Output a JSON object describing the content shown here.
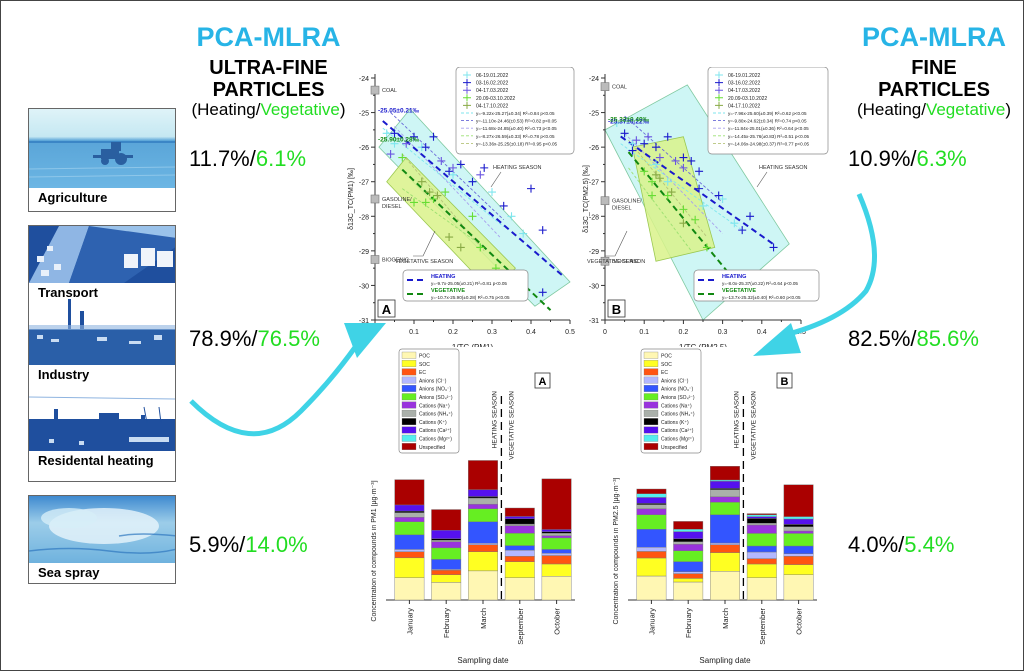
{
  "left_header": {
    "method": "PCA-MLRA",
    "particle_type_line1": "ULTRA-FINE",
    "particle_type_line2": "PARTICLES",
    "season_open": "(Heating/",
    "season_veg": "Vegetative",
    "season_close": ")"
  },
  "right_header": {
    "method": "PCA-MLRA",
    "particle_type_line1": "FINE",
    "particle_type_line2": "PARTICLES",
    "season_open": "(Heating/",
    "season_veg": "Vegetative",
    "season_close": ")"
  },
  "sources": [
    {
      "label": "Agriculture",
      "icon": "tractor-field-photo"
    },
    {
      "label": "Transport",
      "icon": "highway-traffic-photo"
    },
    {
      "label": "Industry",
      "icon": "factory-chimney-photo"
    },
    {
      "label": "Residental heating",
      "icon": "rooftops-chimneys-photo"
    },
    {
      "label": "Sea spray",
      "icon": "sea-waves-photo"
    }
  ],
  "contributions_ultrafine": [
    {
      "group": "agriculture",
      "heating": "11.7%",
      "sep": "/",
      "vegetative": "6.1%"
    },
    {
      "group": "transport-industry-residential",
      "heating": "78.9%",
      "sep": "/",
      "vegetative": "76.5%"
    },
    {
      "group": "sea-spray",
      "heating": "5.9%",
      "sep": "/",
      "vegetative": "14.0%"
    }
  ],
  "contributions_fine": [
    {
      "group": "agriculture",
      "heating": "10.9%",
      "sep": "/",
      "vegetative": "6.3%"
    },
    {
      "group": "transport-industry-residential",
      "heating": "82.5%",
      "sep": "/",
      "vegetative": "85.6%"
    },
    {
      "group": "sea-spray",
      "heating": "4.0%",
      "sep": "/",
      "vegetative": "5.4%"
    }
  ],
  "colors": {
    "accent_cyan": "#27b4e6",
    "arrow_cyan": "#3fd3e6",
    "vegetative_green": "#22dd22",
    "heating_blue": "#1a1acc",
    "vegetative_dark_green": "#118811"
  },
  "chart_data": [
    {
      "id": "A-scatter",
      "type": "scatter",
      "panel_label": "A",
      "xlabel": "1/TC (PM1)",
      "ylabel": "δ13C_TC(PM1) [‰]",
      "xlim": [
        0,
        0.5
      ],
      "ylim": [
        -31,
        -24
      ],
      "xticks": [
        "0",
        "0.1",
        "0.2",
        "0.3",
        "0.4",
        "0.5"
      ],
      "yticks": [
        "-24",
        "-25",
        "-26",
        "-27",
        "-28",
        "-29",
        "-30",
        "-31"
      ],
      "reference_markers": [
        {
          "label": "COAL",
          "y": -24.35
        },
        {
          "label": "GASOLINE/ DIESEL",
          "y": -27.5
        },
        {
          "label": "BIOGENIC",
          "y": -29.25
        }
      ],
      "region_labels": [
        "HEATING SEASON",
        "VEGETATIVE SEASON"
      ],
      "intercept_labels": [
        {
          "text": "-25.05±0.21‰",
          "series": "heating"
        },
        {
          "text": "-25.90±0.28‰",
          "series": "vegetative"
        }
      ],
      "legend_top": [
        {
          "name": "06-19.01.2022",
          "color": "#7fe6ee"
        },
        {
          "name": "03-16.02.2022",
          "color": "#1a1acc"
        },
        {
          "name": "04-17.03.2022",
          "color": "#6a55e0"
        },
        {
          "name": "20.09-03.10.2022",
          "color": "#66dd33"
        },
        {
          "name": "04-17.10.2022",
          "color": "#88aa44"
        }
      ],
      "fit_lines": [
        "y=-9.22x-25.27(±0.34) R²=0.84 p<0.05",
        "y=-11.10x-24.46(±0.53) R²=0.82 p<0.05",
        "y=-11.68x-24.85(±0.40) R²=0.73 p<0.05",
        "y=-8.27x-26.59(±0.33) R²=0.78 p<0.05",
        "y=-13.36x-25.25(±0.18) R²=0.95 p<0.05"
      ],
      "legend_bottom": [
        {
          "name": "HEATING",
          "eq": "y=-9.7x-25.05(±0.21) R²=0.81 p<0.05",
          "color": "#1a1acc"
        },
        {
          "name": "VEGETATIVE",
          "eq": "y=-10.7x-25.90(±0.28) R²=0.75 p<0.05",
          "color": "#118811"
        }
      ],
      "series": [
        {
          "name": "06-19.01.2022",
          "color": "#7fe6ee",
          "points": [
            [
              0.03,
              -25.6
            ],
            [
              0.05,
              -25.9
            ],
            [
              0.12,
              -26.0
            ],
            [
              0.2,
              -26.8
            ],
            [
              0.25,
              -27.0
            ],
            [
              0.3,
              -27.3
            ],
            [
              0.35,
              -28.0
            ],
            [
              0.38,
              -28.5
            ]
          ]
        },
        {
          "name": "03-16.02.2022",
          "color": "#1a1acc",
          "points": [
            [
              0.05,
              -25.6
            ],
            [
              0.1,
              -25.7
            ],
            [
              0.13,
              -26.0
            ],
            [
              0.15,
              -25.7
            ],
            [
              0.19,
              -26.7
            ],
            [
              0.22,
              -26.5
            ],
            [
              0.25,
              -27.0
            ],
            [
              0.28,
              -26.6
            ],
            [
              0.33,
              -27.7
            ],
            [
              0.4,
              -27.2
            ],
            [
              0.43,
              -28.4
            ],
            [
              0.43,
              -30.2
            ]
          ]
        },
        {
          "name": "04-17.03.2022",
          "color": "#6a55e0",
          "points": [
            [
              0.04,
              -26.2
            ],
            [
              0.08,
              -25.9
            ],
            [
              0.17,
              -26.4
            ],
            [
              0.2,
              -26.6
            ],
            [
              0.27,
              -26.8
            ]
          ]
        },
        {
          "name": "20.09-03.10.2022",
          "color": "#66dd33",
          "points": [
            [
              0.07,
              -26.3
            ],
            [
              0.1,
              -27.6
            ],
            [
              0.13,
              -27.6
            ],
            [
              0.15,
              -27.5
            ],
            [
              0.18,
              -27.3
            ],
            [
              0.25,
              -28.0
            ],
            [
              0.27,
              -28.9
            ],
            [
              0.31,
              -29.5
            ]
          ]
        },
        {
          "name": "04-17.10.2022",
          "color": "#88aa44",
          "points": [
            [
              0.12,
              -27.0
            ],
            [
              0.14,
              -27.3
            ],
            [
              0.16,
              -27.4
            ],
            [
              0.19,
              -28.6
            ],
            [
              0.22,
              -28.9
            ]
          ]
        }
      ],
      "regression": [
        {
          "name": "HEATING",
          "slope": -9.7,
          "intercept": -25.05,
          "x_range": [
            0.02,
            0.48
          ],
          "color": "#1a1acc"
        },
        {
          "name": "VEGETATIVE",
          "slope": -10.7,
          "intercept": -25.9,
          "x_range": [
            0.07,
            0.45
          ],
          "color": "#118811"
        }
      ]
    },
    {
      "id": "B-scatter",
      "type": "scatter",
      "panel_label": "B",
      "xlabel": "1/TC (PM2.5)",
      "ylabel": "δ13C_TC(PM2.5) [‰]",
      "xlim": [
        0,
        0.5
      ],
      "ylim": [
        -31,
        -24
      ],
      "xticks": [
        "0",
        "0.1",
        "0.2",
        "0.3",
        "0.4",
        "0.5"
      ],
      "yticks": [
        "-24",
        "-25",
        "-26",
        "-27",
        "-28",
        "-29",
        "-30",
        "-31"
      ],
      "reference_markers": [
        {
          "label": "COAL",
          "y": -24.25
        },
        {
          "label": "GASOLINE/ DIESEL",
          "y": -27.55
        },
        {
          "label": "BIOGENIC",
          "y": -29.3
        }
      ],
      "region_labels": [
        "HEATING SEASON",
        "VEGETATIVE SEASON"
      ],
      "intercept_labels": [
        {
          "text": "-25.37±0.22‰",
          "series": "heating"
        },
        {
          "text": "-25.32±0.40‰",
          "series": "vegetative"
        }
      ],
      "legend_top": [
        {
          "name": "06-19.01.2022",
          "color": "#7fe6ee"
        },
        {
          "name": "03-16.02.2022",
          "color": "#1a1acc"
        },
        {
          "name": "04-17.03.2022",
          "color": "#6a55e0"
        },
        {
          "name": "20.09-03.10.2022",
          "color": "#66dd33"
        },
        {
          "name": "04-17.10.2022",
          "color": "#88aa44"
        }
      ],
      "fit_lines": [
        "y=-7.96x-25.60(±0.39) R²=0.62 p<0.05",
        "y=-9.80x-24.62(±0.34) R²=0.74 p<0.05",
        "y=-11.84x-25.01(±0.36) R²=0.64 p<0.05",
        "y=-14.45x-25.76(±0.83) R²=0.51 p<0.05",
        "y=-14.06x-24.98(±0.37) R²=0.77 p<0.05"
      ],
      "legend_bottom": [
        {
          "name": "HEATING",
          "eq": "y=-8.0x-25.37(±0.22) R²=0.64 p<0.05",
          "color": "#1a1acc"
        },
        {
          "name": "VEGETATIVE",
          "eq": "y=-13.7x-25.32(±0.40) R²=0.60 p<0.05",
          "color": "#118811"
        }
      ],
      "series": [
        {
          "name": "06-19.01.2022",
          "color": "#7fe6ee",
          "points": [
            [
              0.03,
              -25.3
            ],
            [
              0.07,
              -25.9
            ],
            [
              0.13,
              -26.5
            ],
            [
              0.16,
              -27.0
            ],
            [
              0.25,
              -27.7
            ],
            [
              0.3,
              -27.5
            ],
            [
              0.33,
              -28.2
            ]
          ]
        },
        {
          "name": "03-16.02.2022",
          "color": "#1a1acc",
          "points": [
            [
              0.05,
              -25.6
            ],
            [
              0.07,
              -26.1
            ],
            [
              0.1,
              -25.9
            ],
            [
              0.13,
              -26.0
            ],
            [
              0.16,
              -25.7
            ],
            [
              0.2,
              -26.3
            ],
            [
              0.22,
              -26.4
            ],
            [
              0.24,
              -26.7
            ],
            [
              0.24,
              -27.2
            ],
            [
              0.29,
              -25.4
            ],
            [
              0.29,
              -27.4
            ],
            [
              0.37,
              -28.0
            ],
            [
              0.35,
              -28.4
            ],
            [
              0.43,
              -28.9
            ]
          ]
        },
        {
          "name": "04-17.03.2022",
          "color": "#6a55e0",
          "points": [
            [
              0.08,
              -25.8
            ],
            [
              0.11,
              -25.7
            ],
            [
              0.14,
              -26.3
            ],
            [
              0.18,
              -26.4
            ],
            [
              0.2,
              -26.6
            ]
          ]
        },
        {
          "name": "20.09-03.10.2022",
          "color": "#66dd33",
          "points": [
            [
              0.1,
              -26.7
            ],
            [
              0.12,
              -27.0
            ],
            [
              0.12,
              -27.4
            ],
            [
              0.16,
              -27.4
            ],
            [
              0.2,
              -27.8
            ],
            [
              0.23,
              -28.1
            ],
            [
              0.26,
              -28.9
            ]
          ]
        },
        {
          "name": "04-17.10.2022",
          "color": "#88aa44",
          "points": [
            [
              0.13,
              -26.8
            ],
            [
              0.14,
              -26.9
            ],
            [
              0.17,
              -27.3
            ],
            [
              0.2,
              -28.2
            ]
          ]
        }
      ],
      "regression": [
        {
          "name": "HEATING",
          "slope": -8.0,
          "intercept": -25.37,
          "x_range": [
            0.04,
            0.43
          ],
          "color": "#1a1acc"
        },
        {
          "name": "VEGETATIVE",
          "slope": -13.7,
          "intercept": -25.32,
          "x_range": [
            0.06,
            0.35
          ],
          "color": "#118811"
        }
      ]
    },
    {
      "id": "A-stacked-bar",
      "type": "bar",
      "stacked": true,
      "panel_label": "A",
      "xlabel": "Sampling date",
      "ylabel": "Concentration of compounds in PM1 [µg·m⁻³]",
      "categories": [
        "January",
        "February",
        "March",
        "September",
        "October"
      ],
      "season_divider_labels": [
        "HEATING SEASON",
        "VEGETATIVE SEASON"
      ],
      "season_divider_after_index": 2,
      "series": [
        {
          "name": "POC",
          "color": "#fff7b3",
          "values": [
            2.9,
            2.3,
            3.8,
            2.9,
            3.1
          ]
        },
        {
          "name": "SOC",
          "color": "#ffff22",
          "values": [
            2.6,
            1.0,
            2.5,
            2.1,
            1.6
          ]
        },
        {
          "name": "EC",
          "color": "#ff5511",
          "values": [
            0.8,
            0.6,
            0.9,
            0.7,
            1.1
          ]
        },
        {
          "name": "Anions (Cl⁻)",
          "color": "#b3b8ff",
          "values": [
            0.3,
            0.1,
            0.2,
            0.8,
            0.3
          ]
        },
        {
          "name": "Anions (NO₃⁻)",
          "color": "#3355ff",
          "values": [
            1.9,
            1.3,
            2.8,
            0.6,
            0.5
          ]
        },
        {
          "name": "Anions (SO₄²⁻)",
          "color": "#66ee22",
          "values": [
            1.7,
            1.5,
            1.7,
            1.6,
            1.5
          ]
        },
        {
          "name": "Cations (Na⁺)",
          "color": "#9933dd",
          "values": [
            0.6,
            0.8,
            0.6,
            1.0,
            0.3
          ]
        },
        {
          "name": "Cations (NH₄⁺)",
          "color": "#aab0aa",
          "values": [
            0.6,
            0.2,
            0.8,
            0.2,
            0.3
          ]
        },
        {
          "name": "Cations (K⁺)",
          "color": "#000000",
          "values": [
            0.2,
            0.2,
            0.2,
            0.7,
            0.2
          ]
        },
        {
          "name": "Cations (Ca²⁺)",
          "color": "#5511ee",
          "values": [
            0.8,
            1.1,
            0.9,
            0.3,
            0.3
          ]
        },
        {
          "name": "Cations (Mg²⁺)",
          "color": "#55eeee",
          "values": [
            0.0,
            0.0,
            0.0,
            0.0,
            0.0
          ]
        },
        {
          "name": "Unspecified",
          "color": "#aa0000",
          "values": [
            3.3,
            2.7,
            3.8,
            1.1,
            6.6
          ]
        }
      ]
    },
    {
      "id": "B-stacked-bar",
      "type": "bar",
      "stacked": true,
      "panel_label": "B",
      "xlabel": "Sampling date",
      "ylabel": "Concentration of compounds in PM2.5 [µg·m⁻³]",
      "categories": [
        "January",
        "February",
        "March",
        "September",
        "October"
      ],
      "season_divider_labels": [
        "HEATING SEASON",
        "VEGETATIVE SEASON"
      ],
      "season_divider_after_index": 2,
      "series": [
        {
          "name": "POC",
          "color": "#fff7b3",
          "values": [
            4.0,
            3.0,
            4.8,
            3.7,
            4.2
          ]
        },
        {
          "name": "SOC",
          "color": "#ffff22",
          "values": [
            3.0,
            0.6,
            3.1,
            2.3,
            1.7
          ]
        },
        {
          "name": "EC",
          "color": "#ff5511",
          "values": [
            1.1,
            0.8,
            1.3,
            0.9,
            1.4
          ]
        },
        {
          "name": "Anions (Cl⁻)",
          "color": "#b3b8ff",
          "values": [
            0.7,
            0.3,
            0.3,
            1.1,
            0.4
          ]
        },
        {
          "name": "Anions (NO₃⁻)",
          "color": "#3355ff",
          "values": [
            3.0,
            1.7,
            4.7,
            1.0,
            1.3
          ]
        },
        {
          "name": "Anions (SO₄²⁻)",
          "color": "#66ee22",
          "values": [
            2.4,
            1.8,
            2.1,
            2.1,
            2.1
          ]
        },
        {
          "name": "Cations (Na⁺)",
          "color": "#9933dd",
          "values": [
            1.0,
            1.1,
            0.9,
            1.4,
            0.4
          ]
        },
        {
          "name": "Cations (NH₄⁺)",
          "color": "#aab0aa",
          "values": [
            0.7,
            0.4,
            1.2,
            0.3,
            0.7
          ]
        },
        {
          "name": "Cations (K⁺)",
          "color": "#000000",
          "values": [
            0.2,
            0.5,
            0.2,
            0.8,
            0.4
          ]
        },
        {
          "name": "Cations (Ca²⁺)",
          "color": "#5511ee",
          "values": [
            1.0,
            1.2,
            1.2,
            0.3,
            0.9
          ]
        },
        {
          "name": "Cations (Mg²⁺)",
          "color": "#55eeee",
          "values": [
            0.6,
            0.4,
            0.2,
            0.3,
            0.4
          ]
        },
        {
          "name": "Unspecified",
          "color": "#aa0000",
          "values": [
            0.8,
            1.3,
            2.3,
            0.2,
            5.3
          ]
        }
      ]
    }
  ]
}
